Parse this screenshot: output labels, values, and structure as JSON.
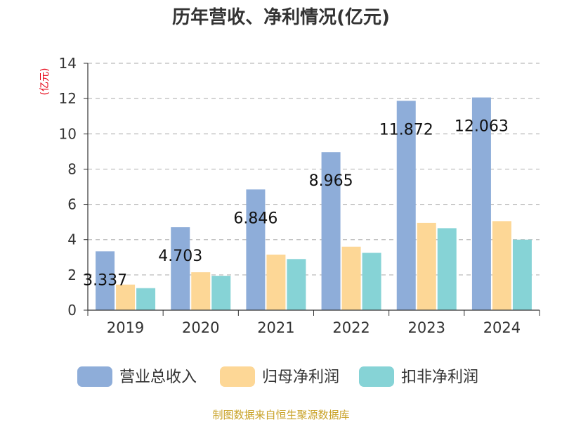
{
  "chart_data": {
    "type": "bar",
    "title": "历年营收、净利情况(亿元)",
    "ylabel": "(亿元)",
    "ylim": [
      0,
      14
    ],
    "yticks": [
      0,
      2,
      4,
      6,
      8,
      10,
      12,
      14
    ],
    "grid": true,
    "legend": "bottom",
    "categories": [
      "2019",
      "2020",
      "2021",
      "2022",
      "2023",
      "2024"
    ],
    "series": [
      {
        "name": "营业总收入",
        "color": "#8eadd9",
        "values": [
          3.337,
          4.703,
          6.846,
          8.965,
          11.872,
          12.063
        ],
        "labels": [
          "3.337",
          "4.703",
          "6.846",
          "8.965",
          "11.872",
          "12.063"
        ]
      },
      {
        "name": "归母净利润",
        "color": "#fdd796",
        "values": [
          1.45,
          2.15,
          3.15,
          3.6,
          4.95,
          5.05
        ]
      },
      {
        "name": "扣非净利润",
        "color": "#86d3d6",
        "values": [
          1.25,
          1.95,
          2.9,
          3.25,
          4.65,
          4.0
        ]
      }
    ]
  },
  "source": "制图数据来自恒生聚源数据库"
}
